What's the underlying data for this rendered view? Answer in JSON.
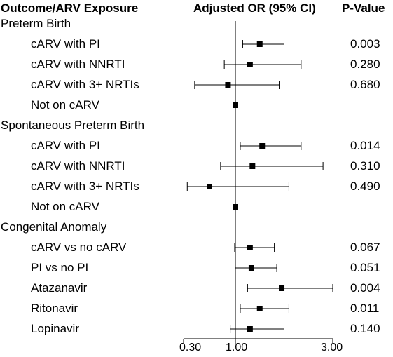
{
  "header": {
    "col1": "Outcome/ARV Exposure",
    "col2": "Adjusted OR (95% CI)",
    "col3": "P-Value"
  },
  "chart_data": {
    "type": "forest",
    "xlim": [
      0.3,
      3.0
    ],
    "x_ticks": [
      "0.30",
      "1.00",
      "3.00"
    ],
    "reference_line": 1.0,
    "groups": [
      {
        "label": "Preterm Birth",
        "rows": [
          {
            "label": "cARV with PI",
            "or": 1.5,
            "lo": 1.15,
            "hi": 2.0,
            "p": "0.003"
          },
          {
            "label": "cARV with NNRTI",
            "or": 1.3,
            "lo": 0.85,
            "hi": 2.35,
            "p": "0.280"
          },
          {
            "label": "cARV with 3+ NRTIs",
            "or": 0.9,
            "lo": 0.45,
            "hi": 1.9,
            "p": "0.680"
          },
          {
            "label": "Not on cARV",
            "or": 1.0,
            "lo": null,
            "hi": null,
            "p": ""
          }
        ]
      },
      {
        "label": "Spontaneous Preterm Birth",
        "rows": [
          {
            "label": "cARV with PI",
            "or": 1.55,
            "lo": 1.1,
            "hi": 2.35,
            "p": "0.014"
          },
          {
            "label": "cARV with NNRTI",
            "or": 1.35,
            "lo": 0.8,
            "hi": 2.8,
            "p": "0.310"
          },
          {
            "label": "cARV with 3+ NRTIs",
            "or": 0.65,
            "lo": 0.35,
            "hi": 2.1,
            "p": "0.490"
          },
          {
            "label": "Not on cARV",
            "or": 1.0,
            "lo": null,
            "hi": null,
            "p": ""
          }
        ]
      },
      {
        "label": "Congenital Anomaly",
        "rows": [
          {
            "label": "cARV vs no cARV",
            "or": 1.3,
            "lo": 0.99,
            "hi": 1.8,
            "p": "0.067"
          },
          {
            "label": "PI vs no PI",
            "or": 1.33,
            "lo": 1.0,
            "hi": 1.85,
            "p": "0.051"
          },
          {
            "label": "Atazanavir",
            "or": 1.95,
            "lo": 1.25,
            "hi": 3.0,
            "p": "0.004"
          },
          {
            "label": "Ritonavir",
            "or": 1.5,
            "lo": 1.1,
            "hi": 2.1,
            "p": "0.011"
          },
          {
            "label": "Lopinavir",
            "or": 1.3,
            "lo": 0.93,
            "hi": 2.0,
            "p": "0.140"
          }
        ]
      }
    ]
  }
}
